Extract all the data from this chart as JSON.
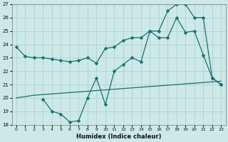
{
  "xlabel": "Humidex (Indice chaleur)",
  "xlim": [
    -0.5,
    23.5
  ],
  "ylim": [
    18,
    27
  ],
  "xticks": [
    0,
    1,
    2,
    3,
    4,
    5,
    6,
    7,
    8,
    9,
    10,
    11,
    12,
    13,
    14,
    15,
    16,
    17,
    18,
    19,
    20,
    21,
    22,
    23
  ],
  "yticks": [
    18,
    19,
    20,
    21,
    22,
    23,
    24,
    25,
    26,
    27
  ],
  "bg_color": "#cce8e8",
  "line_color": "#1a7070",
  "grid_color": "#aacece",
  "line1_x": [
    0,
    1,
    2,
    3,
    4,
    5,
    6,
    7,
    8,
    9,
    10,
    11,
    12,
    13,
    14,
    15,
    16,
    17,
    18,
    19,
    20,
    21,
    22,
    23
  ],
  "line1_y": [
    23.8,
    23.1,
    23.0,
    23.0,
    22.9,
    22.8,
    22.7,
    22.8,
    23.0,
    22.6,
    23.7,
    23.8,
    24.3,
    24.5,
    24.5,
    25.0,
    24.5,
    24.5,
    26.0,
    24.9,
    25.0,
    23.2,
    21.5,
    21.0
  ],
  "line2_x": [
    3,
    4,
    5,
    6,
    7,
    8,
    9,
    10,
    11,
    12,
    13,
    14,
    15,
    16,
    17,
    18,
    19,
    20,
    21,
    22,
    23
  ],
  "line2_y": [
    19.9,
    19.0,
    18.8,
    18.2,
    18.3,
    20.0,
    21.5,
    19.5,
    22.0,
    22.5,
    23.0,
    22.7,
    25.0,
    25.0,
    26.5,
    27.0,
    27.0,
    26.0,
    26.0,
    21.5,
    21.0
  ],
  "line3_x": [
    0,
    1,
    2,
    3,
    4,
    5,
    6,
    7,
    8,
    9,
    10,
    11,
    12,
    13,
    14,
    15,
    16,
    17,
    18,
    19,
    20,
    21,
    22,
    23
  ],
  "line3_y": [
    20.0,
    20.1,
    20.2,
    20.25,
    20.3,
    20.35,
    20.4,
    20.45,
    20.5,
    20.55,
    20.6,
    20.65,
    20.7,
    20.75,
    20.8,
    20.85,
    20.9,
    20.95,
    21.0,
    21.05,
    21.1,
    21.15,
    21.2,
    21.25
  ],
  "markersize": 2.5,
  "linewidth": 0.9
}
